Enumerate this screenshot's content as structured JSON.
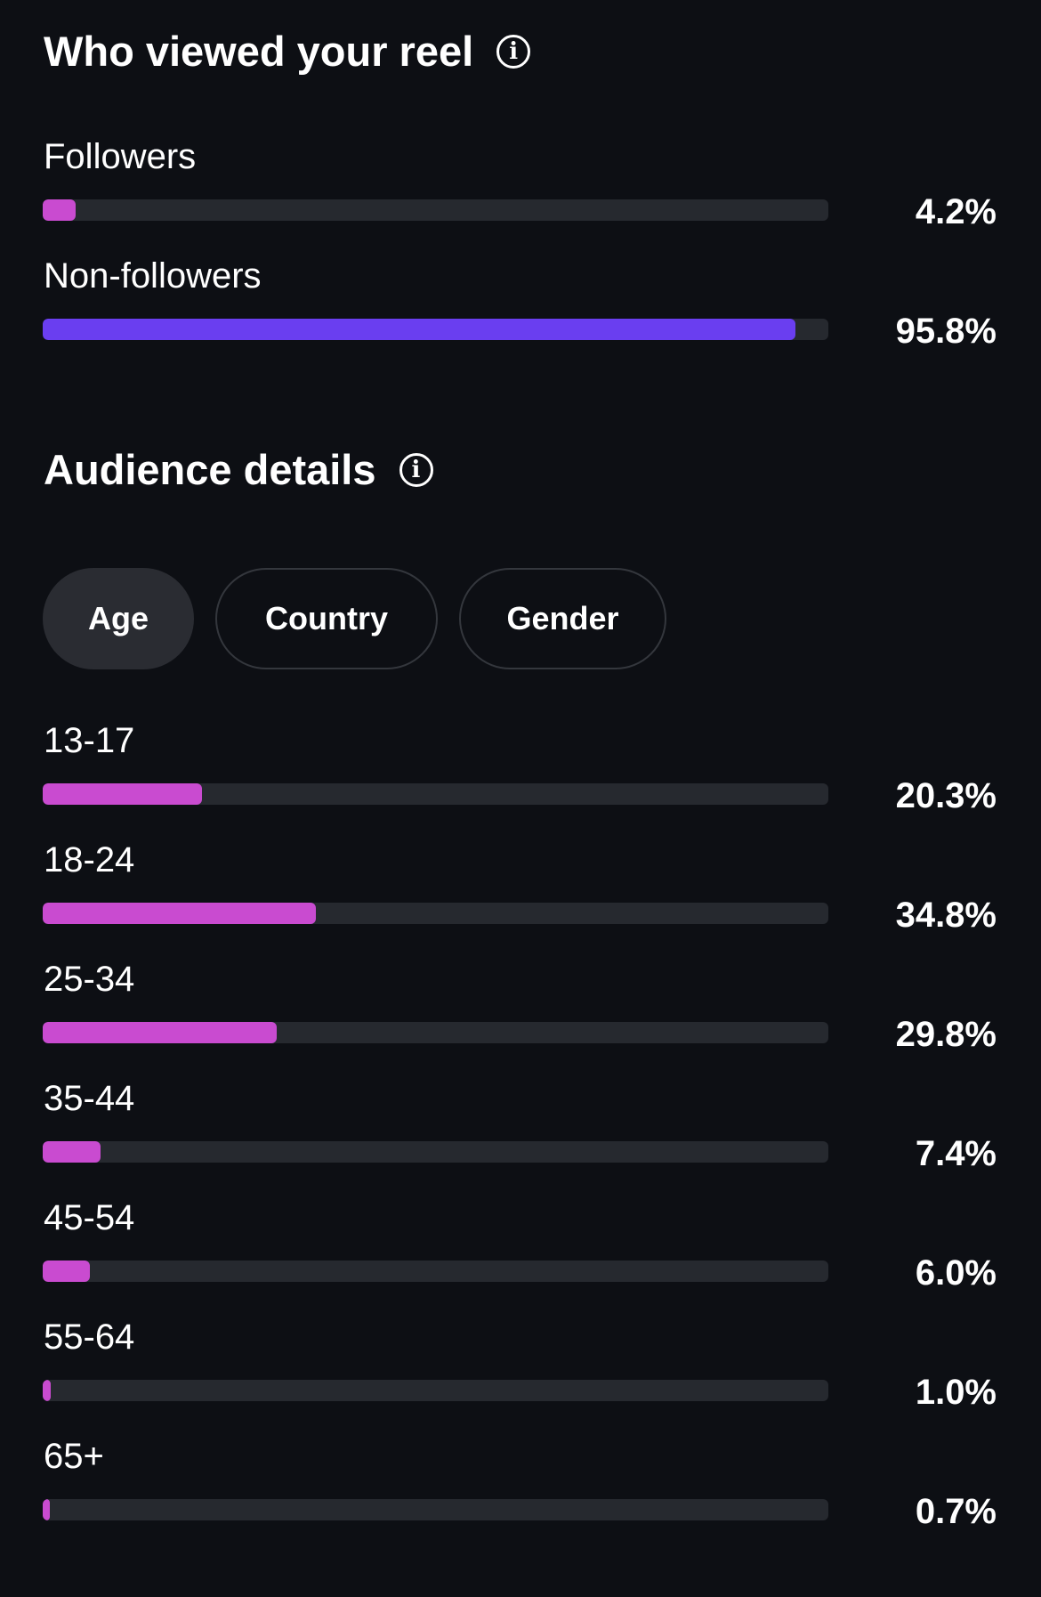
{
  "viewers": {
    "title": "Who viewed your reel",
    "info_icon": "info-icon",
    "rows": [
      {
        "label": "Followers",
        "percent_text": "4.2%",
        "fraction": 0.042,
        "color": "#c94bd0"
      },
      {
        "label": "Non-followers",
        "percent_text": "95.8%",
        "fraction": 0.958,
        "color": "#6a3ef0"
      }
    ]
  },
  "audience": {
    "title": "Audience details",
    "info_icon": "info-icon",
    "tabs": [
      {
        "label": "Age",
        "active": true
      },
      {
        "label": "Country",
        "active": false
      },
      {
        "label": "Gender",
        "active": false
      }
    ],
    "bar_color": "#c94bd0",
    "rows": [
      {
        "label": "13-17",
        "percent_text": "20.3%",
        "fraction": 0.203
      },
      {
        "label": "18-24",
        "percent_text": "34.8%",
        "fraction": 0.348
      },
      {
        "label": "25-34",
        "percent_text": "29.8%",
        "fraction": 0.298
      },
      {
        "label": "35-44",
        "percent_text": "7.4%",
        "fraction": 0.074
      },
      {
        "label": "45-54",
        "percent_text": "6.0%",
        "fraction": 0.06
      },
      {
        "label": "55-64",
        "percent_text": "1.0%",
        "fraction": 0.01
      },
      {
        "label": "65+",
        "percent_text": "0.7%",
        "fraction": 0.007
      }
    ]
  },
  "colors": {
    "background": "#0d0f14",
    "track": "#26292f",
    "followers": "#c94bd0",
    "non_followers": "#6a3ef0"
  }
}
